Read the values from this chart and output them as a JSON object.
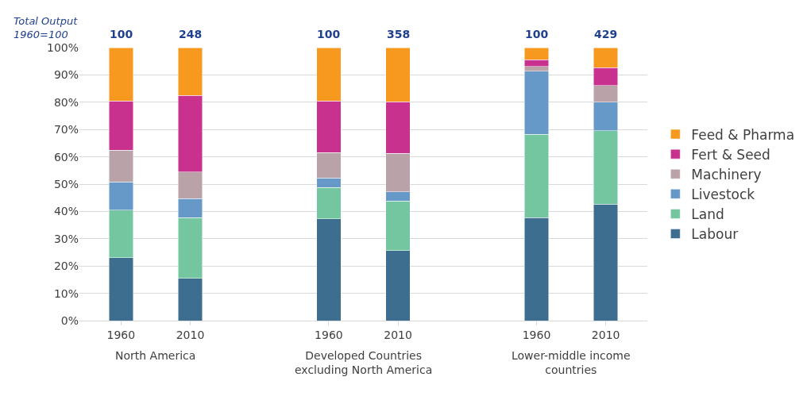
{
  "chart_data": {
    "type": "bar",
    "stacked": true,
    "categories": [
      "1960",
      "2010",
      null,
      "1960",
      "2010",
      null,
      "1960",
      "2010"
    ],
    "series": [
      {
        "name": "Labour",
        "color": "#3d6e8f",
        "values": [
          23,
          15.5,
          null,
          37.3,
          25.7,
          null,
          37.7,
          42.6
        ]
      },
      {
        "name": "Land",
        "color": "#74c6a0",
        "values": [
          17.5,
          22.2,
          null,
          11.4,
          18.1,
          null,
          30.5,
          27
        ]
      },
      {
        "name": "Livestock",
        "color": "#6699c8",
        "values": [
          10.3,
          7,
          null,
          3.5,
          3.3,
          null,
          23.1,
          10.4
        ]
      },
      {
        "name": "Machinery",
        "color": "#b9a3a9",
        "values": [
          11.6,
          9.8,
          null,
          9.4,
          14.1,
          null,
          1.8,
          6.1
        ]
      },
      {
        "name": "Fert & Seed",
        "color": "#c8318e",
        "values": [
          18,
          28,
          null,
          18.9,
          19,
          null,
          2.4,
          6.6
        ]
      },
      {
        "name": "Feed & Pharma",
        "color": "#f7991f",
        "values": [
          19.6,
          17.5,
          null,
          19.5,
          19.8,
          null,
          4.5,
          7.3
        ]
      }
    ],
    "ylim": [
      0,
      100
    ],
    "yticks": [
      {
        "value": 0,
        "label": "0%"
      },
      {
        "value": 10,
        "label": "10%"
      },
      {
        "value": 20,
        "label": "20%"
      },
      {
        "value": 30,
        "label": "30%"
      },
      {
        "value": 40,
        "label": "40%"
      },
      {
        "value": 50,
        "label": "50%"
      },
      {
        "value": 60,
        "label": "60%"
      },
      {
        "value": 70,
        "label": "70%"
      },
      {
        "value": 80,
        "label": "80%"
      },
      {
        "value": 90,
        "label": "90%"
      },
      {
        "value": 100,
        "label": "100%"
      }
    ],
    "annotations": [
      "Total Output\n1960=100",
      "100",
      "248",
      "100",
      "358",
      "100",
      "429",
      "North America",
      "Developed Countries\nexcluding North America",
      "Lower-middle income\ncountries"
    ],
    "grid": "y",
    "legend": "right"
  }
}
